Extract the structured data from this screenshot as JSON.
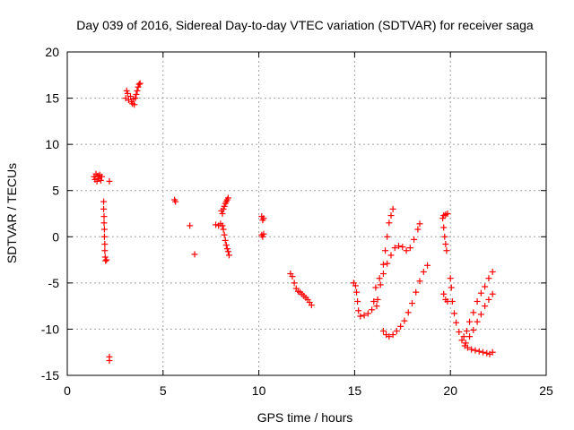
{
  "chart_data": {
    "type": "scatter",
    "title": "Day 039 of 2016, Sidereal Day-to-day VTEC variation (SDTVAR) for receiver saga",
    "xlabel": "GPS time / hours",
    "ylabel": "SDTVAR / TECUs",
    "xlim": [
      0,
      25
    ],
    "ylim": [
      -15,
      20
    ],
    "xticks": [
      0,
      5,
      10,
      15,
      20,
      25
    ],
    "yticks": [
      -15,
      -10,
      -5,
      0,
      5,
      10,
      15,
      20
    ],
    "xtick_labels": [
      "0",
      "5",
      "10",
      "15",
      "20",
      "25"
    ],
    "ytick_labels": [
      "-15",
      "-10",
      "-5",
      "0",
      "5",
      "10",
      "15",
      "20"
    ],
    "grid": true,
    "marker": "+",
    "marker_color": "#ff0000",
    "series": [
      {
        "name": "SDTVAR",
        "points": [
          [
            1.4,
            6.5
          ],
          [
            1.45,
            6.2
          ],
          [
            1.5,
            6.8
          ],
          [
            1.55,
            6.0
          ],
          [
            1.6,
            6.6
          ],
          [
            1.65,
            6.3
          ],
          [
            1.7,
            6.7
          ],
          [
            1.75,
            6.1
          ],
          [
            1.8,
            6.5
          ],
          [
            1.9,
            3.8
          ],
          [
            1.9,
            3.0
          ],
          [
            1.92,
            2.2
          ],
          [
            1.92,
            1.5
          ],
          [
            1.94,
            0.8
          ],
          [
            1.94,
            0.0
          ],
          [
            1.96,
            -0.8
          ],
          [
            1.96,
            -1.5
          ],
          [
            1.98,
            -2.2
          ],
          [
            2.0,
            -2.6
          ],
          [
            2.05,
            -2.5
          ],
          [
            2.2,
            6.0
          ],
          [
            2.2,
            -13.0
          ],
          [
            2.2,
            -13.4
          ],
          [
            3.05,
            15.0
          ],
          [
            3.1,
            15.8
          ],
          [
            3.15,
            15.5
          ],
          [
            3.2,
            14.8
          ],
          [
            3.3,
            15.2
          ],
          [
            3.35,
            14.6
          ],
          [
            3.4,
            14.4
          ],
          [
            3.45,
            14.9
          ],
          [
            3.5,
            14.3
          ],
          [
            3.55,
            15.0
          ],
          [
            3.6,
            15.4
          ],
          [
            3.65,
            15.8
          ],
          [
            3.7,
            16.2
          ],
          [
            3.75,
            16.5
          ],
          [
            3.8,
            16.6
          ],
          [
            5.6,
            4.0
          ],
          [
            5.65,
            3.8
          ],
          [
            6.4,
            1.2
          ],
          [
            6.65,
            -1.9
          ],
          [
            7.75,
            1.3
          ],
          [
            7.9,
            1.2
          ],
          [
            8.0,
            1.4
          ],
          [
            8.05,
            2.8
          ],
          [
            8.1,
            2.5
          ],
          [
            8.15,
            3.0
          ],
          [
            8.2,
            3.3
          ],
          [
            8.25,
            3.6
          ],
          [
            8.3,
            3.8
          ],
          [
            8.35,
            4.0
          ],
          [
            8.4,
            4.2
          ],
          [
            8.1,
            1.2
          ],
          [
            8.15,
            0.8
          ],
          [
            8.2,
            0.2
          ],
          [
            8.25,
            -0.4
          ],
          [
            8.3,
            -0.9
          ],
          [
            8.35,
            -1.3
          ],
          [
            8.4,
            -1.6
          ],
          [
            8.45,
            -2.0
          ],
          [
            10.15,
            2.2
          ],
          [
            10.2,
            1.8
          ],
          [
            10.25,
            2.0
          ],
          [
            10.15,
            0.2
          ],
          [
            10.2,
            0.0
          ],
          [
            10.25,
            0.3
          ],
          [
            11.65,
            -4.0
          ],
          [
            11.75,
            -4.3
          ],
          [
            11.85,
            -5.0
          ],
          [
            11.95,
            -5.6
          ],
          [
            12.05,
            -5.9
          ],
          [
            12.15,
            -6.0
          ],
          [
            12.25,
            -6.2
          ],
          [
            12.35,
            -6.4
          ],
          [
            12.45,
            -6.6
          ],
          [
            12.55,
            -6.8
          ],
          [
            12.65,
            -7.1
          ],
          [
            12.75,
            -7.4
          ],
          [
            14.95,
            -5.0
          ],
          [
            15.05,
            -5.3
          ],
          [
            15.1,
            -6.0
          ],
          [
            15.15,
            -7.0
          ],
          [
            15.2,
            -8.0
          ],
          [
            15.3,
            -8.6
          ],
          [
            15.5,
            -8.5
          ],
          [
            15.7,
            -8.3
          ],
          [
            15.9,
            -7.9
          ],
          [
            16.0,
            -7.0
          ],
          [
            16.1,
            -5.5
          ],
          [
            16.3,
            -4.5
          ],
          [
            16.5,
            -3.0
          ],
          [
            16.6,
            -1.5
          ],
          [
            16.7,
            0.0
          ],
          [
            16.8,
            1.5
          ],
          [
            16.9,
            2.3
          ],
          [
            17.0,
            3.0
          ],
          [
            16.15,
            -7.5
          ],
          [
            16.2,
            -6.8
          ],
          [
            16.35,
            -5.2
          ],
          [
            16.5,
            -4.0
          ],
          [
            16.7,
            -2.9
          ],
          [
            16.9,
            -2.0
          ],
          [
            17.1,
            -1.2
          ],
          [
            17.3,
            -1.0
          ],
          [
            17.5,
            -1.1
          ],
          [
            17.7,
            -1.5
          ],
          [
            17.9,
            -1.2
          ],
          [
            18.1,
            -0.3
          ],
          [
            18.3,
            0.8
          ],
          [
            18.4,
            1.4
          ],
          [
            16.5,
            -10.2
          ],
          [
            16.65,
            -10.6
          ],
          [
            16.8,
            -10.8
          ],
          [
            17.0,
            -10.6
          ],
          [
            17.2,
            -10.2
          ],
          [
            17.4,
            -9.7
          ],
          [
            17.6,
            -9.1
          ],
          [
            17.8,
            -8.2
          ],
          [
            18.0,
            -7.2
          ],
          [
            18.2,
            -6.0
          ],
          [
            18.4,
            -4.8
          ],
          [
            18.6,
            -3.8
          ],
          [
            18.8,
            -3.1
          ],
          [
            19.6,
            2.0
          ],
          [
            19.65,
            1.0
          ],
          [
            19.7,
            0.0
          ],
          [
            19.75,
            -0.8
          ],
          [
            19.8,
            -1.5
          ],
          [
            19.65,
            2.3
          ],
          [
            19.75,
            2.4
          ],
          [
            19.85,
            2.5
          ],
          [
            19.65,
            -6.2
          ],
          [
            19.75,
            -6.8
          ],
          [
            19.85,
            -7.0
          ],
          [
            20.0,
            -4.5
          ],
          [
            20.05,
            -5.5
          ],
          [
            20.1,
            -7.0
          ],
          [
            20.2,
            -8.3
          ],
          [
            20.3,
            -9.3
          ],
          [
            20.45,
            -10.3
          ],
          [
            20.6,
            -11.2
          ],
          [
            20.75,
            -11.8
          ],
          [
            20.9,
            -12.0
          ],
          [
            21.1,
            -12.2
          ],
          [
            21.3,
            -12.3
          ],
          [
            21.5,
            -12.4
          ],
          [
            21.7,
            -12.5
          ],
          [
            21.9,
            -12.6
          ],
          [
            22.05,
            -12.7
          ],
          [
            22.2,
            -12.5
          ],
          [
            20.7,
            -10.8
          ],
          [
            20.85,
            -10.2
          ],
          [
            21.0,
            -9.2
          ],
          [
            21.2,
            -8.2
          ],
          [
            21.4,
            -7.0
          ],
          [
            21.6,
            -6.1
          ],
          [
            21.8,
            -5.4
          ],
          [
            22.0,
            -4.5
          ],
          [
            22.2,
            -3.8
          ],
          [
            20.8,
            -11.5
          ],
          [
            21.0,
            -10.8
          ],
          [
            21.2,
            -10.1
          ],
          [
            21.4,
            -9.2
          ],
          [
            21.6,
            -8.4
          ],
          [
            21.8,
            -7.5
          ],
          [
            22.0,
            -6.8
          ],
          [
            22.2,
            -6.2
          ]
        ]
      }
    ]
  }
}
